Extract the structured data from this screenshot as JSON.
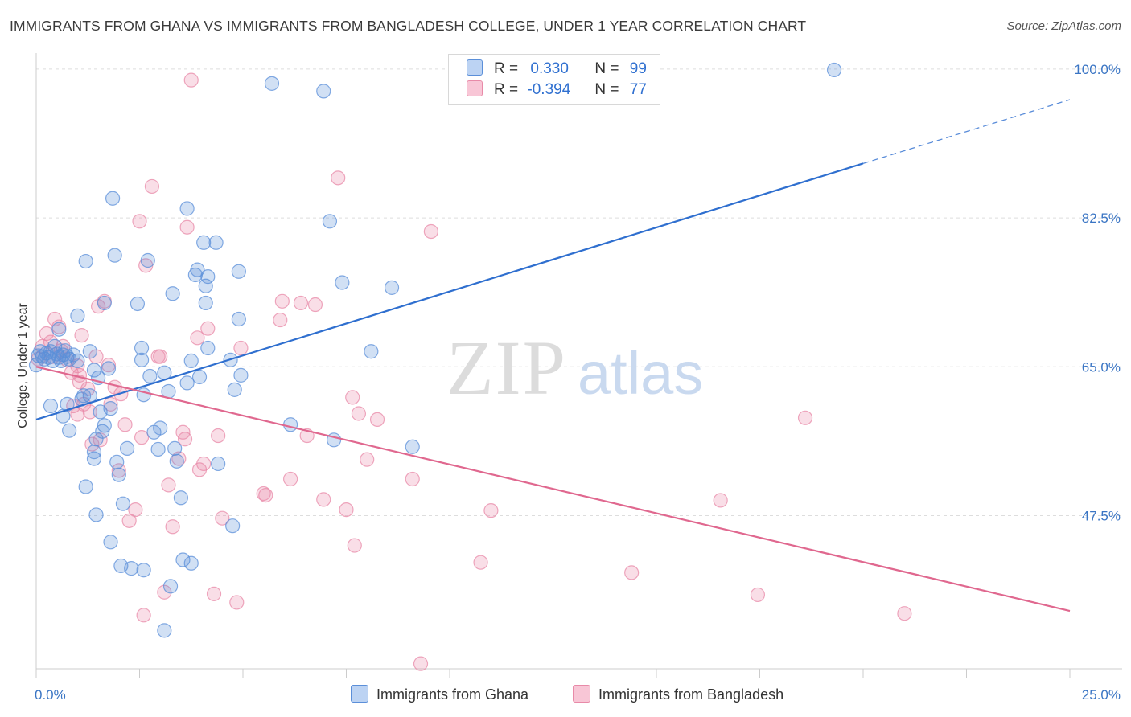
{
  "title": "IMMIGRANTS FROM GHANA VS IMMIGRANTS FROM BANGLADESH COLLEGE, UNDER 1 YEAR CORRELATION CHART",
  "source": "Source: ZipAtlas.com",
  "watermark": {
    "zip": "ZIP",
    "atlas": "atlas"
  },
  "colors": {
    "ghana": "#5b8fd9",
    "bangladesh": "#e88aa8",
    "ghana_line": "#2f6fcf",
    "bangladesh_line": "#e0688f",
    "tick_label": "#3a75c4"
  },
  "legend": {
    "ghana": {
      "r_label": "R =",
      "r_value": "0.330",
      "n_label": "N =",
      "n_value": "99"
    },
    "bangladesh": {
      "r_label": "R =",
      "r_value": "-0.394",
      "n_label": "N =",
      "n_value": "77"
    }
  },
  "bottom_legend": {
    "ghana": "Immigrants from Ghana",
    "bangladesh": "Immigrants from Bangladesh"
  },
  "chart_data": {
    "type": "scatter",
    "title": "IMMIGRANTS FROM GHANA VS IMMIGRANTS FROM BANGLADESH COLLEGE, UNDER 1 YEAR CORRELATION CHART",
    "xlabel": "",
    "ylabel": "College, Under 1 year",
    "xlim": [
      0,
      25
    ],
    "ylim": [
      29.5,
      101.5
    ],
    "x_tick_labels": [
      "0.0%",
      "25.0%"
    ],
    "y_ticks": [
      47.5,
      65.0,
      82.5,
      100.0
    ],
    "y_tick_labels": [
      "47.5%",
      "65.0%",
      "82.5%",
      "100.0%"
    ],
    "grid": true,
    "legend_position": "top-center",
    "series": [
      {
        "name": "Immigrants from Ghana",
        "trend": {
          "x": [
            0,
            20,
            25
          ],
          "y": [
            58.8,
            88.9,
            96.4
          ],
          "solid_until_x": 20
        },
        "points": [
          [
            0.0,
            65.2
          ],
          [
            0.05,
            66.3
          ],
          [
            0.1,
            66.8
          ],
          [
            0.15,
            66.2
          ],
          [
            0.2,
            65.9
          ],
          [
            0.25,
            66.6
          ],
          [
            0.3,
            66.1
          ],
          [
            0.35,
            66.8
          ],
          [
            0.4,
            65.7
          ],
          [
            0.45,
            67.4
          ],
          [
            0.5,
            66.5
          ],
          [
            0.55,
            66.1
          ],
          [
            0.6,
            65.7
          ],
          [
            0.65,
            66.4
          ],
          [
            0.7,
            66.9
          ],
          [
            0.75,
            66.2
          ],
          [
            0.8,
            65.9
          ],
          [
            0.9,
            66.4
          ],
          [
            0.35,
            60.4
          ],
          [
            0.55,
            69.4
          ],
          [
            0.65,
            59.2
          ],
          [
            0.75,
            60.6
          ],
          [
            0.8,
            57.5
          ],
          [
            1.0,
            65.7
          ],
          [
            1.0,
            71.0
          ],
          [
            1.15,
            61.6
          ],
          [
            1.2,
            77.4
          ],
          [
            1.3,
            66.8
          ],
          [
            1.3,
            61.6
          ],
          [
            1.4,
            64.6
          ],
          [
            1.45,
            56.5
          ],
          [
            1.5,
            63.7
          ],
          [
            1.55,
            59.7
          ],
          [
            1.6,
            57.4
          ],
          [
            1.65,
            58.1
          ],
          [
            1.1,
            61.2
          ],
          [
            1.2,
            50.9
          ],
          [
            1.4,
            55.0
          ],
          [
            1.4,
            54.2
          ],
          [
            1.45,
            47.6
          ],
          [
            1.65,
            72.5
          ],
          [
            1.75,
            64.8
          ],
          [
            1.8,
            60.1
          ],
          [
            1.85,
            84.8
          ],
          [
            1.9,
            78.1
          ],
          [
            1.95,
            53.8
          ],
          [
            2.0,
            52.3
          ],
          [
            2.05,
            41.6
          ],
          [
            2.1,
            48.9
          ],
          [
            2.2,
            55.4
          ],
          [
            1.8,
            44.4
          ],
          [
            2.3,
            41.3
          ],
          [
            2.45,
            72.4
          ],
          [
            2.55,
            67.2
          ],
          [
            2.6,
            61.7
          ],
          [
            2.55,
            65.8
          ],
          [
            2.6,
            41.1
          ],
          [
            2.7,
            77.5
          ],
          [
            2.75,
            63.9
          ],
          [
            2.85,
            57.3
          ],
          [
            2.95,
            55.3
          ],
          [
            3.0,
            57.8
          ],
          [
            3.1,
            64.3
          ],
          [
            3.2,
            62.1
          ],
          [
            3.3,
            73.6
          ],
          [
            3.25,
            39.2
          ],
          [
            3.1,
            34.0
          ],
          [
            3.35,
            55.4
          ],
          [
            3.4,
            53.9
          ],
          [
            3.5,
            49.6
          ],
          [
            3.55,
            42.3
          ],
          [
            3.65,
            63.1
          ],
          [
            3.65,
            83.6
          ],
          [
            3.75,
            41.9
          ],
          [
            3.75,
            65.7
          ],
          [
            3.85,
            75.8
          ],
          [
            3.9,
            76.4
          ],
          [
            3.95,
            63.8
          ],
          [
            4.05,
            79.6
          ],
          [
            4.15,
            67.2
          ],
          [
            4.1,
            72.5
          ],
          [
            4.1,
            74.5
          ],
          [
            4.15,
            75.6
          ],
          [
            4.35,
            79.6
          ],
          [
            4.4,
            53.6
          ],
          [
            4.7,
            65.8
          ],
          [
            4.75,
            46.3
          ],
          [
            4.8,
            62.3
          ],
          [
            4.9,
            76.2
          ],
          [
            4.9,
            70.6
          ],
          [
            4.95,
            64.0
          ],
          [
            5.7,
            98.3
          ],
          [
            6.15,
            58.2
          ],
          [
            6.95,
            97.4
          ],
          [
            7.1,
            82.1
          ],
          [
            7.2,
            56.4
          ],
          [
            7.4,
            74.9
          ],
          [
            8.1,
            66.8
          ],
          [
            8.6,
            74.3
          ],
          [
            9.1,
            55.6
          ],
          [
            19.3,
            99.9
          ]
        ]
      },
      {
        "name": "Immigrants from Bangladesh",
        "trend": {
          "x": [
            0,
            25
          ],
          "y": [
            65.0,
            36.3
          ]
        },
        "points": [
          [
            0.05,
            65.9
          ],
          [
            0.15,
            67.4
          ],
          [
            0.25,
            68.9
          ],
          [
            0.35,
            67.9
          ],
          [
            0.4,
            66.2
          ],
          [
            0.45,
            70.6
          ],
          [
            0.55,
            69.7
          ],
          [
            0.6,
            66.9
          ],
          [
            0.65,
            67.4
          ],
          [
            0.75,
            65.8
          ],
          [
            0.85,
            64.3
          ],
          [
            0.9,
            60.4
          ],
          [
            1.0,
            65.1
          ],
          [
            1.05,
            64.0
          ],
          [
            1.1,
            68.7
          ],
          [
            1.0,
            59.4
          ],
          [
            1.05,
            63.2
          ],
          [
            1.15,
            60.6
          ],
          [
            1.25,
            62.4
          ],
          [
            1.3,
            59.7
          ],
          [
            1.35,
            55.9
          ],
          [
            1.45,
            66.2
          ],
          [
            1.5,
            72.1
          ],
          [
            1.55,
            56.4
          ],
          [
            1.65,
            72.7
          ],
          [
            1.75,
            65.2
          ],
          [
            1.8,
            60.6
          ],
          [
            1.9,
            62.6
          ],
          [
            2.0,
            52.8
          ],
          [
            2.05,
            61.8
          ],
          [
            2.15,
            58.2
          ],
          [
            2.25,
            46.9
          ],
          [
            2.4,
            48.2
          ],
          [
            2.5,
            82.1
          ],
          [
            2.55,
            56.7
          ],
          [
            2.65,
            76.9
          ],
          [
            2.6,
            35.8
          ],
          [
            2.8,
            86.2
          ],
          [
            2.95,
            66.2
          ],
          [
            3.0,
            66.2
          ],
          [
            3.1,
            38.5
          ],
          [
            3.2,
            51.1
          ],
          [
            3.3,
            46.2
          ],
          [
            3.45,
            54.2
          ],
          [
            3.55,
            57.3
          ],
          [
            3.6,
            56.5
          ],
          [
            3.65,
            81.4
          ],
          [
            3.75,
            98.7
          ],
          [
            3.9,
            68.4
          ],
          [
            3.95,
            52.9
          ],
          [
            4.05,
            53.6
          ],
          [
            4.15,
            69.5
          ],
          [
            4.3,
            38.3
          ],
          [
            4.4,
            56.9
          ],
          [
            4.5,
            47.2
          ],
          [
            4.85,
            37.3
          ],
          [
            4.95,
            67.2
          ],
          [
            5.5,
            50.1
          ],
          [
            5.55,
            49.9
          ],
          [
            5.9,
            70.5
          ],
          [
            5.95,
            72.7
          ],
          [
            6.15,
            51.8
          ],
          [
            6.4,
            72.5
          ],
          [
            6.55,
            56.9
          ],
          [
            6.75,
            72.3
          ],
          [
            6.95,
            49.4
          ],
          [
            7.3,
            87.2
          ],
          [
            7.5,
            48.2
          ],
          [
            7.65,
            61.4
          ],
          [
            7.7,
            44.0
          ],
          [
            7.8,
            59.5
          ],
          [
            8.0,
            54.1
          ],
          [
            8.25,
            58.8
          ],
          [
            9.1,
            51.8
          ],
          [
            9.3,
            30.1
          ],
          [
            9.55,
            80.9
          ],
          [
            10.75,
            42.0
          ],
          [
            11.0,
            48.1
          ],
          [
            14.4,
            40.8
          ],
          [
            16.55,
            49.3
          ],
          [
            17.45,
            38.2
          ],
          [
            18.6,
            59.0
          ],
          [
            21.0,
            36.0
          ]
        ]
      }
    ]
  }
}
